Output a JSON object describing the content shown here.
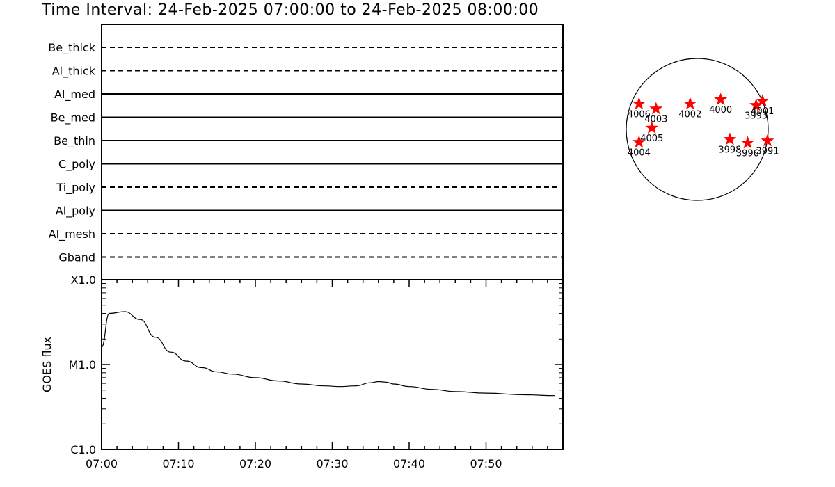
{
  "title": "Time Interval: 24-Feb-2025 07:00:00 to 24-Feb-2025 08:00:00",
  "chart_data": [
    {
      "type": "line",
      "panel": "filter-timeline",
      "categories": [
        "Be_thick",
        "Al_thick",
        "Al_med",
        "Be_med",
        "Be_thin",
        "C_poly",
        "Ti_poly",
        "Al_poly",
        "Al_mesh",
        "Gband"
      ],
      "styles": [
        "dashed",
        "dashed",
        "solid",
        "solid",
        "solid",
        "solid",
        "dashed",
        "solid",
        "dashed",
        "dashed"
      ],
      "x_range": [
        "07:00",
        "08:00"
      ],
      "grid": false
    },
    {
      "type": "line",
      "panel": "goes-flux",
      "ylabel": "GOES flux",
      "ytick_labels": [
        "C1.0",
        "M1.0",
        "X1.0"
      ],
      "ylim_log_watts": [
        1e-06,
        0.0001
      ],
      "yscale": "log",
      "xtick_labels": [
        "07:00",
        "07:10",
        "07:20",
        "07:30",
        "07:40",
        "07:50"
      ],
      "x_minutes": [
        0,
        1,
        3,
        5,
        7,
        9,
        11,
        13,
        15,
        17,
        20,
        23,
        26,
        29,
        31,
        33,
        35,
        36,
        37,
        38,
        40,
        43,
        46,
        50,
        55,
        59
      ],
      "y_watts": [
        1.6e-05,
        4e-05,
        4.2e-05,
        3.4e-05,
        2.1e-05,
        1.4e-05,
        1.1e-05,
        9.2e-06,
        8.2e-06,
        7.7e-06,
        7e-06,
        6.4e-06,
        5.9e-06,
        5.6e-06,
        5.5e-06,
        5.6e-06,
        6.1e-06,
        6.3e-06,
        6.2e-06,
        5.9e-06,
        5.5e-06,
        5.1e-06,
        4.8e-06,
        4.6e-06,
        4.4e-06,
        4.3e-06
      ],
      "grid": false
    },
    {
      "type": "scatter",
      "panel": "solar-disk-active-regions",
      "marker_color": "#ff0000",
      "regions": [
        {
          "label": "4006",
          "x": -0.82,
          "y": 0.36
        },
        {
          "label": "4003",
          "x": -0.58,
          "y": 0.29
        },
        {
          "label": "4005",
          "x": -0.64,
          "y": 0.02
        },
        {
          "label": "4004",
          "x": -0.82,
          "y": -0.18
        },
        {
          "label": "4002",
          "x": -0.1,
          "y": 0.36
        },
        {
          "label": "4000",
          "x": 0.33,
          "y": 0.42
        },
        {
          "label": "3993",
          "x": 0.83,
          "y": 0.34
        },
        {
          "label": "4001",
          "x": 0.92,
          "y": 0.4
        },
        {
          "label": "3998",
          "x": 0.46,
          "y": -0.14
        },
        {
          "label": "3996",
          "x": 0.71,
          "y": -0.19
        },
        {
          "label": "3991",
          "x": 0.99,
          "y": -0.16
        }
      ]
    }
  ]
}
